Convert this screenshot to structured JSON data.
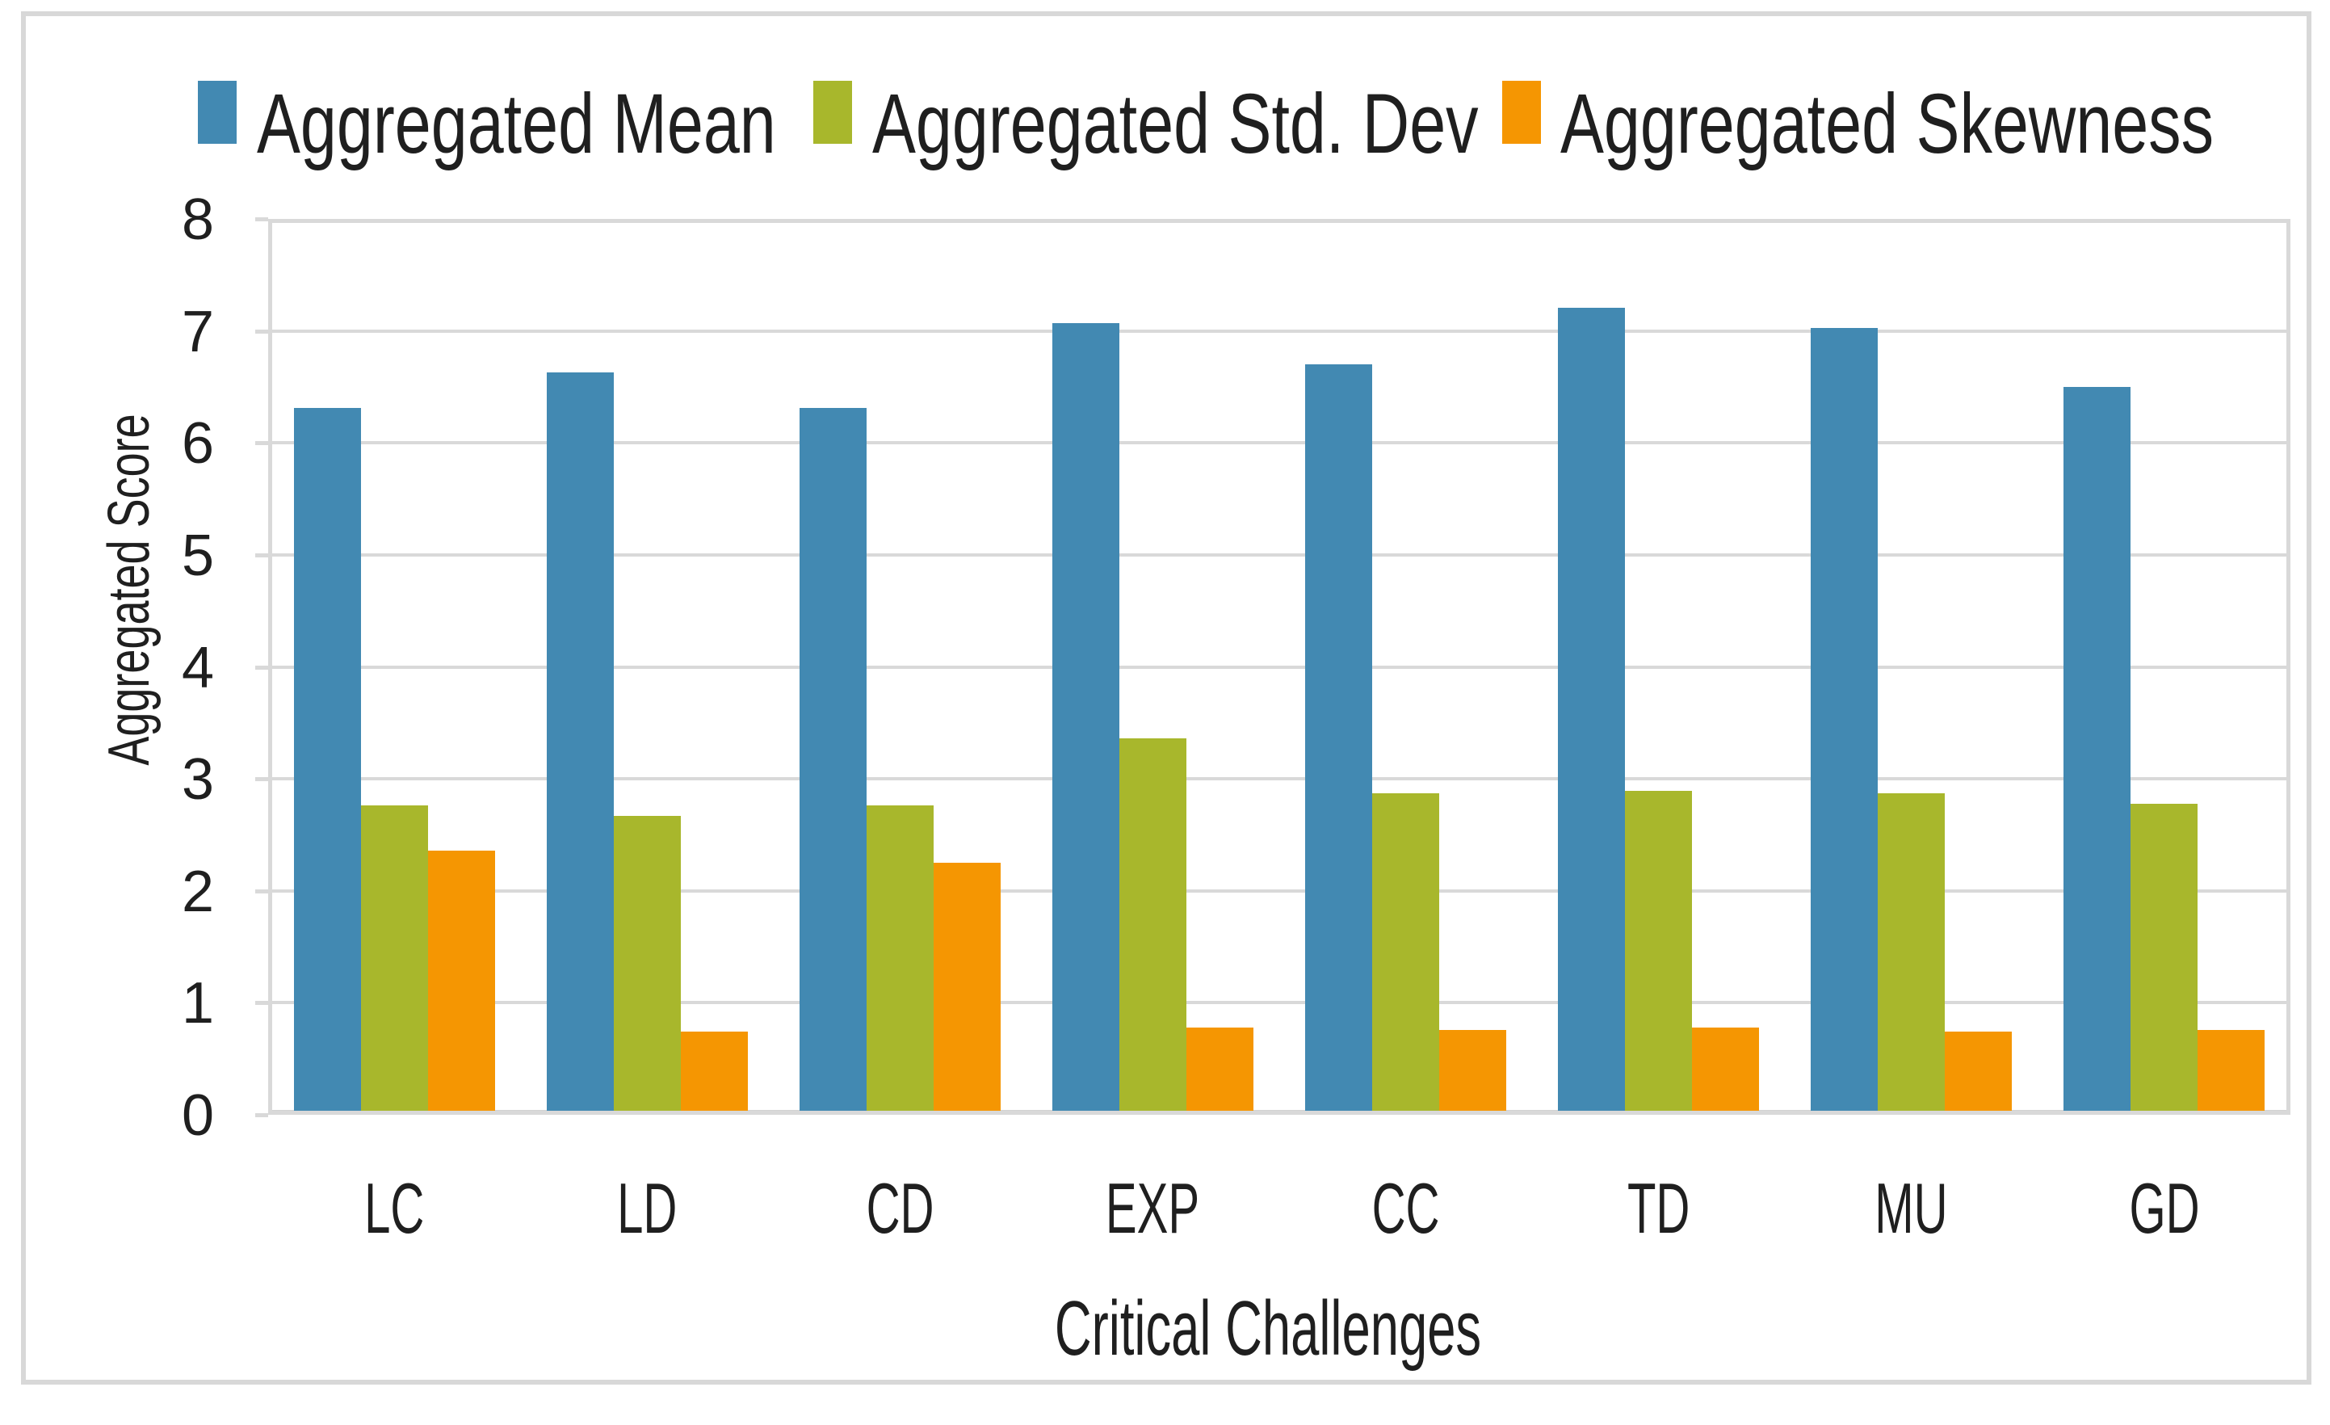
{
  "figure": {
    "background": "#ffffff",
    "frame_color": "#d8d8d8",
    "gridline_color": "#d9d9d9",
    "axis_line_color": "#d2d2d2",
    "text_color": "#1f1f1f"
  },
  "chart_data": {
    "type": "bar",
    "categories": [
      "LC",
      "LD",
      "CD",
      "EXP",
      "CC",
      "TD",
      "MU",
      "GD"
    ],
    "series": [
      {
        "name": "Aggregated Mean",
        "color": "#4289B2",
        "values": [
          6.31,
          6.63,
          6.31,
          7.07,
          6.7,
          7.21,
          7.03,
          6.5
        ]
      },
      {
        "name": "Aggregated Std. Dev",
        "color": "#A8B72C",
        "values": [
          2.76,
          2.67,
          2.76,
          3.36,
          2.87,
          2.89,
          2.87,
          2.78
        ]
      },
      {
        "name": "Aggregated Skewness",
        "color": "#F59602",
        "values": [
          2.36,
          0.74,
          2.25,
          0.78,
          0.76,
          0.78,
          0.74,
          0.76
        ]
      }
    ],
    "xlabel": "Critical Challenges",
    "ylabel": "Aggregated Score",
    "ylim": [
      0,
      8
    ],
    "yticks": [
      0,
      1,
      2,
      3,
      4,
      5,
      6,
      7,
      8
    ],
    "grid": true,
    "legend_position": "top"
  }
}
